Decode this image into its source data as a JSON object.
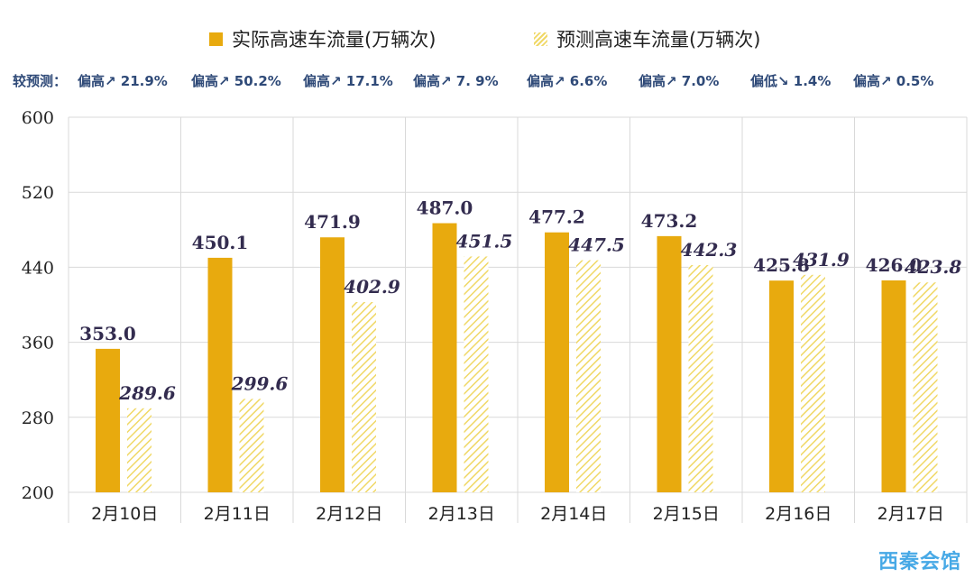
{
  "legend": {
    "actual": "实际高速车流量(万辆次)",
    "forecast": "预测高速车流量(万辆次)"
  },
  "comparison": {
    "prefix": "较预测：",
    "items": [
      "偏高↗ 21.9%",
      "偏高↗ 50.2%",
      "偏高↗ 17.1%",
      "偏高↗ 7. 9%",
      "偏高↗ 6.6%",
      "偏高↗  7.0%",
      "偏低↘ 1.4%",
      "偏高↗ 0.5%"
    ]
  },
  "colors": {
    "actual": "#e8aa0e",
    "forecast_stripe": "#f0d866",
    "compare_text": "#2f4a78",
    "grid": "#d9d9d9"
  },
  "chart_data": {
    "type": "bar",
    "categories": [
      "2月10日",
      "2月11日",
      "2月12日",
      "2月13日",
      "2月14日",
      "2月15日",
      "2月16日",
      "2月17日"
    ],
    "series": [
      {
        "name": "实际高速车流量(万辆次)",
        "values": [
          353.0,
          450.1,
          471.9,
          487.0,
          477.2,
          473.2,
          425.8,
          426.0
        ]
      },
      {
        "name": "预测高速车流量(万辆次)",
        "values": [
          289.6,
          299.6,
          402.9,
          451.5,
          447.5,
          442.3,
          431.9,
          423.8
        ]
      }
    ],
    "value_labels": [
      [
        "353.0",
        "450.1",
        "471.9",
        "487.0",
        "477.2",
        "473.2",
        "425.8",
        "426.0"
      ],
      [
        "289.6",
        "299.6",
        "402.9",
        "451.5",
        "447.5",
        "442.3",
        "431.9",
        "423.8"
      ]
    ],
    "ylim": [
      200,
      600
    ],
    "yticks": [
      "200",
      "280",
      "360",
      "440",
      "520",
      "600"
    ],
    "grid": true,
    "legend_position": "top"
  },
  "watermark": "西秦会馆"
}
